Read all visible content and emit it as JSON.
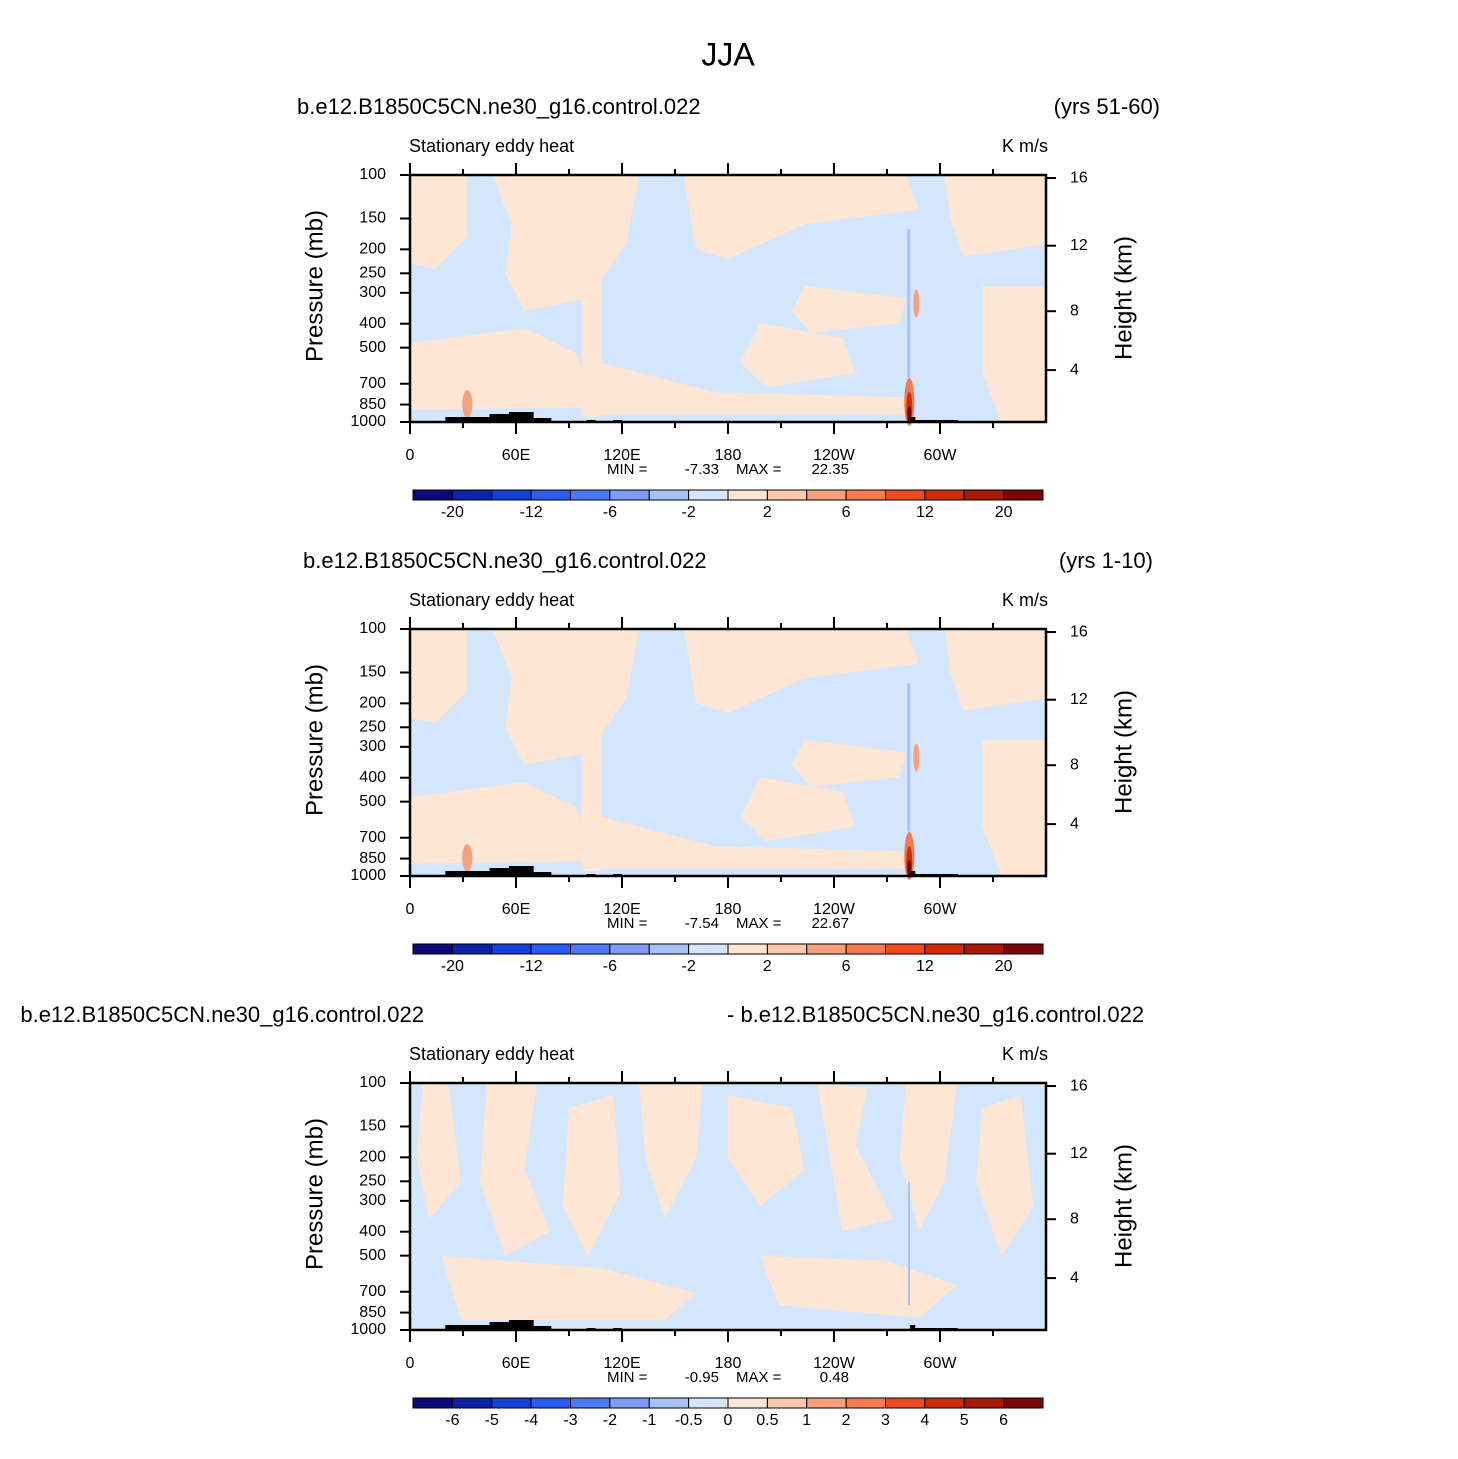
{
  "title": "JJA",
  "chart_data": [
    {
      "type": "contour",
      "title_left": "b.e12.B1850C5CN.ne30_g16.control.022",
      "title_right": "(yrs 51-60)",
      "subtitle_left": "Stationary eddy heat",
      "subtitle_right": "K m/s",
      "ylabel": "Pressure (mb)",
      "y2label": "Height (km)",
      "ylim": [
        1000,
        100
      ],
      "ylog": true,
      "yticks": [
        100,
        150,
        200,
        250,
        300,
        400,
        500,
        700,
        850,
        1000
      ],
      "y2ticks": [
        4,
        8,
        12,
        16
      ],
      "xlim": [
        0,
        360
      ],
      "xticks": [
        0,
        {
          "value": 60,
          "label": "60E"
        },
        {
          "value": 120,
          "label": "120E"
        },
        180,
        {
          "value": 240,
          "label": "120W"
        },
        {
          "value": 300,
          "label": "60W"
        }
      ],
      "min_label": "MIN =",
      "min": -7.33,
      "max_label": "MAX =",
      "max": 22.35,
      "levels": [
        -20,
        null,
        -12,
        null,
        -6,
        null,
        -2,
        null,
        2,
        null,
        6,
        null,
        12,
        null,
        20
      ],
      "colors": [
        "#0a0a7a",
        "#0c25a8",
        "#1440d6",
        "#2a5cf0",
        "#4d78f5",
        "#7e9cf2",
        "#a9c2f5",
        "#d4e6fb",
        "#fde6d4",
        "#fbc8ac",
        "#f6a07e",
        "#f47a52",
        "#ee4b22",
        "#d02c0a",
        "#a81a05",
        "#7a0508"
      ]
    },
    {
      "type": "contour",
      "title_left": "b.e12.B1850C5CN.ne30_g16.control.022",
      "title_right": "(yrs 1-10)",
      "subtitle_left": "Stationary eddy heat",
      "subtitle_right": "K m/s",
      "ylabel": "Pressure (mb)",
      "y2label": "Height (km)",
      "ylim": [
        1000,
        100
      ],
      "ylog": true,
      "yticks": [
        100,
        150,
        200,
        250,
        300,
        400,
        500,
        700,
        850,
        1000
      ],
      "y2ticks": [
        4,
        8,
        12,
        16
      ],
      "xlim": [
        0,
        360
      ],
      "xticks": [
        0,
        {
          "value": 60,
          "label": "60E"
        },
        {
          "value": 120,
          "label": "120E"
        },
        180,
        {
          "value": 240,
          "label": "120W"
        },
        {
          "value": 300,
          "label": "60W"
        }
      ],
      "min_label": "MIN =",
      "min": -7.54,
      "max_label": "MAX =",
      "max": 22.67,
      "levels": [
        -20,
        null,
        -12,
        null,
        -6,
        null,
        -2,
        null,
        2,
        null,
        6,
        null,
        12,
        null,
        20
      ],
      "colors": [
        "#0a0a7a",
        "#0c25a8",
        "#1440d6",
        "#2a5cf0",
        "#4d78f5",
        "#7e9cf2",
        "#a9c2f5",
        "#d4e6fb",
        "#fde6d4",
        "#fbc8ac",
        "#f6a07e",
        "#f47a52",
        "#ee4b22",
        "#d02c0a",
        "#a81a05",
        "#7a0508"
      ]
    },
    {
      "type": "contour",
      "title_left": "b.e12.B1850C5CN.ne30_g16.control.022",
      "title_right": "- b.e12.B1850C5CN.ne30_g16.control.022",
      "subtitle_left": "Stationary eddy heat",
      "subtitle_right": "K m/s",
      "ylabel": "Pressure (mb)",
      "y2label": "Height (km)",
      "ylim": [
        1000,
        100
      ],
      "ylog": true,
      "yticks": [
        100,
        150,
        200,
        250,
        300,
        400,
        500,
        700,
        850,
        1000
      ],
      "y2ticks": [
        4,
        8,
        12,
        16
      ],
      "xlim": [
        0,
        360
      ],
      "xticks": [
        0,
        {
          "value": 60,
          "label": "60E"
        },
        {
          "value": 120,
          "label": "120E"
        },
        180,
        {
          "value": 240,
          "label": "120W"
        },
        {
          "value": 300,
          "label": "60W"
        }
      ],
      "min_label": "MIN =",
      "min": -0.95,
      "max_label": "MAX =",
      "max": 0.48,
      "levels": [
        -6,
        -5,
        -4,
        -3,
        -2,
        -1,
        -0.5,
        0,
        0.5,
        1,
        2,
        3,
        4,
        5,
        6
      ],
      "colors": [
        "#0a0a7a",
        "#0c25a8",
        "#1440d6",
        "#2a5cf0",
        "#4d78f5",
        "#7e9cf2",
        "#a9c2f5",
        "#d4e6fb",
        "#fde6d4",
        "#fbc8ac",
        "#f6a07e",
        "#f47a52",
        "#ee4b22",
        "#d02c0a",
        "#a81a05",
        "#7a0508"
      ]
    }
  ]
}
